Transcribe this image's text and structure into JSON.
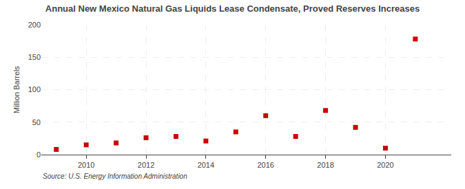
{
  "chart_data": {
    "type": "scatter",
    "title": "Annual New Mexico Natural Gas Liquids Lease Condensate, Proved Reserves Increases",
    "ylabel": "Million Barrels",
    "annotations": [
      "Source: U.S. Energy Information Administration"
    ],
    "x": [
      2009,
      2010,
      2011,
      2012,
      2013,
      2014,
      2015,
      2016,
      2017,
      2018,
      2019,
      2020,
      2021
    ],
    "values": [
      8,
      15,
      18,
      26,
      28,
      21,
      35,
      60,
      28,
      68,
      42,
      10,
      178
    ],
    "color": "#cc0000",
    "marker": "square",
    "xlim": [
      2008.5,
      2022.2
    ],
    "ylim": [
      0,
      200
    ],
    "xticks": [
      2010,
      2012,
      2014,
      2016,
      2018,
      2020
    ],
    "yticks": [
      0,
      50,
      100,
      150,
      200
    ],
    "grid": true
  }
}
